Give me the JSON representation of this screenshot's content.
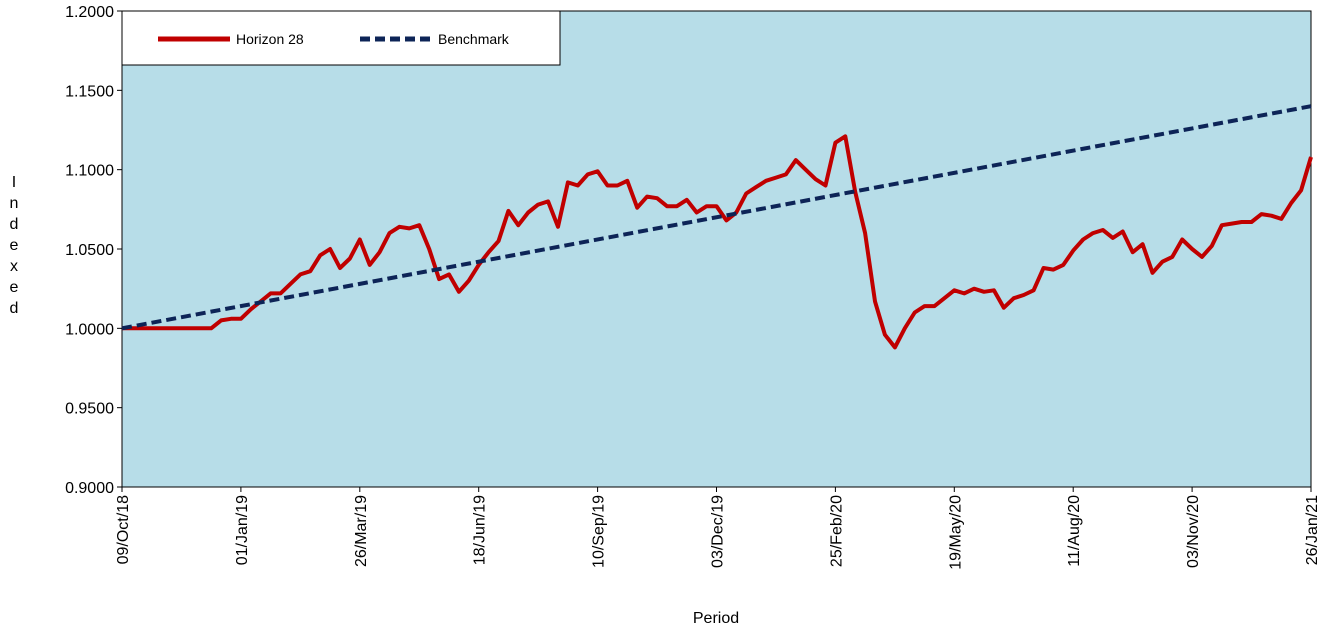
{
  "colors": {
    "plot_bg": "#b7dde8",
    "horizon": "#c00000",
    "benchmark": "#0d2457",
    "axis": "#000000"
  },
  "chart_data": {
    "type": "line",
    "xlabel": "Period",
    "ylabel": "Indexed",
    "ylim": [
      0.9,
      1.2
    ],
    "y_ticks": [
      "1.2000",
      "1.1500",
      "1.1000",
      "1.0500",
      "1.0000",
      "0.9500",
      "0.9000"
    ],
    "x_ticks": [
      "09/Oct/18",
      "01/Jan/19",
      "26/Mar/19",
      "18/Jun/19",
      "10/Sep/19",
      "03/Dec/19",
      "25/Feb/20",
      "19/May/20",
      "11/Aug/20",
      "03/Nov/20",
      "26/Jan/21"
    ],
    "x_start": "09/Oct/18",
    "x_end": "26/Jan/21",
    "legend_position": "top-left",
    "series": [
      {
        "name": "Horizon 28",
        "style": "solid",
        "color": "#c00000",
        "points": [
          [
            "2018-10-09",
            1.0
          ],
          [
            "2018-10-16",
            1.0
          ],
          [
            "2018-10-23",
            1.0
          ],
          [
            "2018-10-30",
            1.0
          ],
          [
            "2018-11-06",
            1.0
          ],
          [
            "2018-11-13",
            1.0
          ],
          [
            "2018-11-20",
            1.0
          ],
          [
            "2018-11-27",
            1.0
          ],
          [
            "2018-12-04",
            1.0
          ],
          [
            "2018-12-11",
            1.0
          ],
          [
            "2018-12-18",
            1.005
          ],
          [
            "2018-12-25",
            1.006
          ],
          [
            "2019-01-01",
            1.006
          ],
          [
            "2019-01-08",
            1.012
          ],
          [
            "2019-01-15",
            1.017
          ],
          [
            "2019-01-22",
            1.022
          ],
          [
            "2019-01-29",
            1.022
          ],
          [
            "2019-02-05",
            1.028
          ],
          [
            "2019-02-12",
            1.034
          ],
          [
            "2019-02-19",
            1.036
          ],
          [
            "2019-02-26",
            1.046
          ],
          [
            "2019-03-05",
            1.05
          ],
          [
            "2019-03-12",
            1.038
          ],
          [
            "2019-03-19",
            1.044
          ],
          [
            "2019-03-26",
            1.056
          ],
          [
            "2019-04-02",
            1.04
          ],
          [
            "2019-04-09",
            1.048
          ],
          [
            "2019-04-16",
            1.06
          ],
          [
            "2019-04-23",
            1.064
          ],
          [
            "2019-04-30",
            1.063
          ],
          [
            "2019-05-07",
            1.065
          ],
          [
            "2019-05-14",
            1.05
          ],
          [
            "2019-05-21",
            1.031
          ],
          [
            "2019-05-28",
            1.034
          ],
          [
            "2019-06-04",
            1.023
          ],
          [
            "2019-06-11",
            1.03
          ],
          [
            "2019-06-18",
            1.04
          ],
          [
            "2019-06-25",
            1.048
          ],
          [
            "2019-07-02",
            1.055
          ],
          [
            "2019-07-09",
            1.074
          ],
          [
            "2019-07-16",
            1.065
          ],
          [
            "2019-07-23",
            1.073
          ],
          [
            "2019-07-30",
            1.078
          ],
          [
            "2019-08-06",
            1.08
          ],
          [
            "2019-08-13",
            1.064
          ],
          [
            "2019-08-20",
            1.092
          ],
          [
            "2019-08-27",
            1.09
          ],
          [
            "2019-09-03",
            1.097
          ],
          [
            "2019-09-10",
            1.099
          ],
          [
            "2019-09-17",
            1.09
          ],
          [
            "2019-09-24",
            1.09
          ],
          [
            "2019-10-01",
            1.093
          ],
          [
            "2019-10-08",
            1.076
          ],
          [
            "2019-10-15",
            1.083
          ],
          [
            "2019-10-22",
            1.082
          ],
          [
            "2019-10-29",
            1.077
          ],
          [
            "2019-11-05",
            1.077
          ],
          [
            "2019-11-12",
            1.081
          ],
          [
            "2019-11-19",
            1.073
          ],
          [
            "2019-11-26",
            1.077
          ],
          [
            "2019-12-03",
            1.077
          ],
          [
            "2019-12-10",
            1.068
          ],
          [
            "2019-12-17",
            1.073
          ],
          [
            "2019-12-24",
            1.085
          ],
          [
            "2019-12-31",
            1.089
          ],
          [
            "2020-01-07",
            1.093
          ],
          [
            "2020-01-14",
            1.095
          ],
          [
            "2020-01-21",
            1.097
          ],
          [
            "2020-01-28",
            1.106
          ],
          [
            "2020-02-04",
            1.1
          ],
          [
            "2020-02-11",
            1.094
          ],
          [
            "2020-02-18",
            1.09
          ],
          [
            "2020-02-25",
            1.117
          ],
          [
            "2020-03-03",
            1.121
          ],
          [
            "2020-03-10",
            1.086
          ],
          [
            "2020-03-17",
            1.06
          ],
          [
            "2020-03-24",
            1.017
          ],
          [
            "2020-03-31",
            0.996
          ],
          [
            "2020-04-07",
            0.988
          ],
          [
            "2020-04-14",
            1.0
          ],
          [
            "2020-04-21",
            1.01
          ],
          [
            "2020-04-28",
            1.014
          ],
          [
            "2020-05-05",
            1.014
          ],
          [
            "2020-05-12",
            1.019
          ],
          [
            "2020-05-19",
            1.024
          ],
          [
            "2020-05-26",
            1.022
          ],
          [
            "2020-06-02",
            1.025
          ],
          [
            "2020-06-09",
            1.023
          ],
          [
            "2020-06-16",
            1.024
          ],
          [
            "2020-06-23",
            1.013
          ],
          [
            "2020-06-30",
            1.019
          ],
          [
            "2020-07-07",
            1.021
          ],
          [
            "2020-07-14",
            1.024
          ],
          [
            "2020-07-21",
            1.038
          ],
          [
            "2020-07-28",
            1.037
          ],
          [
            "2020-08-04",
            1.04
          ],
          [
            "2020-08-11",
            1.049
          ],
          [
            "2020-08-18",
            1.056
          ],
          [
            "2020-08-25",
            1.06
          ],
          [
            "2020-09-01",
            1.062
          ],
          [
            "2020-09-08",
            1.057
          ],
          [
            "2020-09-15",
            1.061
          ],
          [
            "2020-09-22",
            1.048
          ],
          [
            "2020-09-29",
            1.053
          ],
          [
            "2020-10-06",
            1.035
          ],
          [
            "2020-10-13",
            1.042
          ],
          [
            "2020-10-20",
            1.045
          ],
          [
            "2020-10-27",
            1.056
          ],
          [
            "2020-11-03",
            1.05
          ],
          [
            "2020-11-10",
            1.045
          ],
          [
            "2020-11-17",
            1.052
          ],
          [
            "2020-11-24",
            1.065
          ],
          [
            "2020-12-01",
            1.066
          ],
          [
            "2020-12-08",
            1.067
          ],
          [
            "2020-12-15",
            1.067
          ],
          [
            "2020-12-22",
            1.072
          ],
          [
            "2020-12-29",
            1.071
          ],
          [
            "2021-01-05",
            1.069
          ],
          [
            "2021-01-12",
            1.079
          ],
          [
            "2021-01-19",
            1.087
          ],
          [
            "2021-01-26",
            1.108
          ]
        ]
      },
      {
        "name": "Benchmark",
        "style": "dashed",
        "color": "#0d2457",
        "points": [
          [
            "2018-10-09",
            1.0
          ],
          [
            "2021-01-26",
            1.14
          ]
        ]
      }
    ]
  }
}
